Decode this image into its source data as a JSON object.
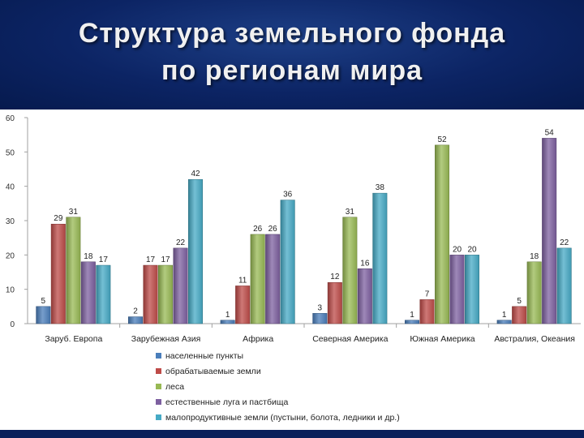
{
  "header": {
    "title_line1": "Структура земельного фонда",
    "title_line2": "по регионам мира"
  },
  "chart_data": {
    "type": "bar",
    "title": "",
    "xlabel": "",
    "ylabel": "",
    "ylim": [
      0,
      60
    ],
    "yticks": [
      0,
      10,
      20,
      30,
      40,
      50,
      60
    ],
    "grid": false,
    "legend_position": "bottom",
    "categories": [
      "Заруб. Европа",
      "Зарубежная Азия",
      "Африка",
      "Северная Америка",
      "Южная Америка",
      "Австралия, Океания"
    ],
    "series": [
      {
        "name": "населенные пункты",
        "color": "#4a7ebb",
        "values": [
          5,
          2,
          1,
          3,
          1,
          1
        ]
      },
      {
        "name": "обрабатываемые земли",
        "color": "#be4b48",
        "values": [
          29,
          17,
          11,
          12,
          7,
          5
        ]
      },
      {
        "name": "леса",
        "color": "#98b954",
        "values": [
          31,
          17,
          26,
          31,
          52,
          18
        ]
      },
      {
        "name": "естественные луга и пастбища",
        "color": "#7d60a0",
        "values": [
          18,
          22,
          26,
          16,
          20,
          54
        ]
      },
      {
        "name": "малопродуктивные земли (пустыни, болота, ледники и др.)",
        "color": "#46aac5",
        "values": [
          17,
          42,
          36,
          38,
          20,
          22
        ]
      }
    ]
  }
}
